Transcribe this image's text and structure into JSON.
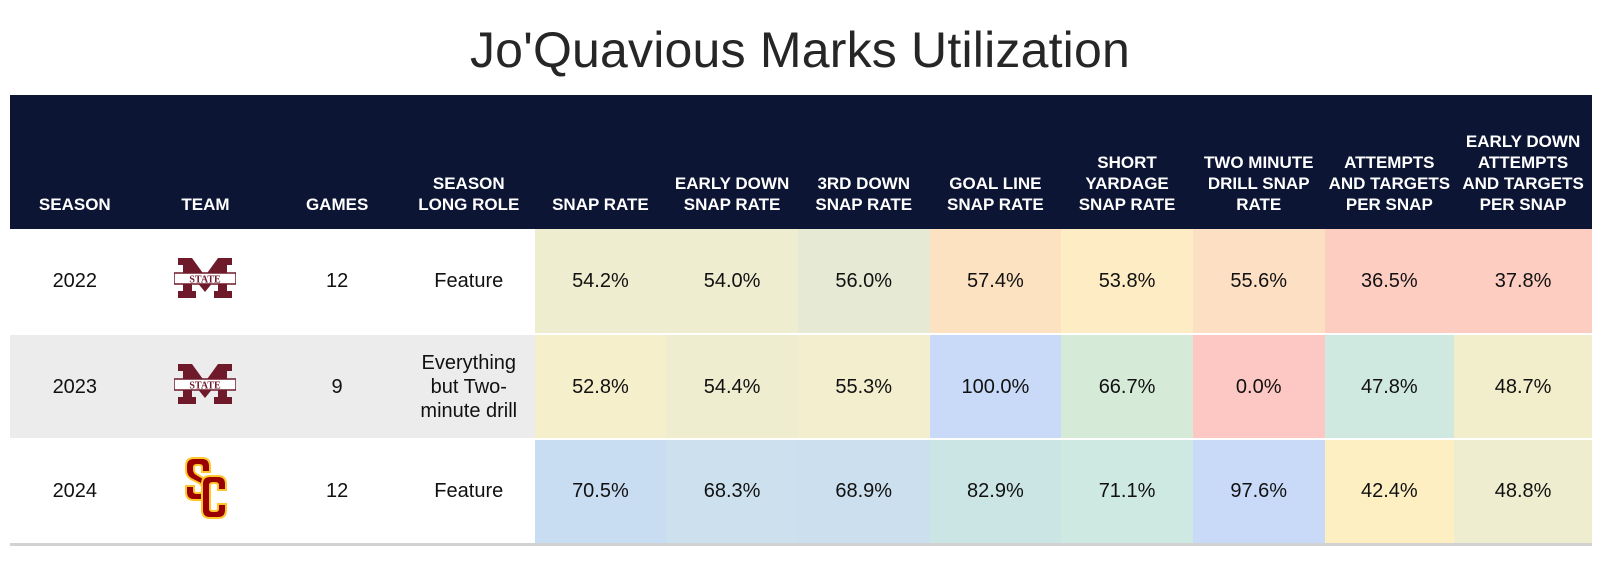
{
  "title": "Jo'Quavious Marks Utilization",
  "chart_data": {
    "type": "table",
    "title": "Jo'Quavious Marks Utilization",
    "columns": [
      "SEASON",
      "TEAM",
      "GAMES",
      "SEASON LONG ROLE",
      "SNAP RATE",
      "EARLY DOWN SNAP RATE",
      "3RD DOWN SNAP RATE",
      "GOAL LINE SNAP RATE",
      "SHORT YARDAGE SNAP RATE",
      "TWO MINUTE DRILL SNAP RATE",
      "ATTEMPTS AND TARGETS PER SNAP",
      "EARLY DOWN ATTEMPTS AND TARGETS PER SNAP"
    ],
    "rows": [
      {
        "season": "2022",
        "team_logo": "mississippi-state-logo",
        "games": "12",
        "role": "Feature",
        "metrics": [
          {
            "text": "54.2%",
            "color": "#eeedcf"
          },
          {
            "text": "54.0%",
            "color": "#eeedcf"
          },
          {
            "text": "56.0%",
            "color": "#e6ead5"
          },
          {
            "text": "57.4%",
            "color": "#fde2c2"
          },
          {
            "text": "53.8%",
            "color": "#fdecc4"
          },
          {
            "text": "55.6%",
            "color": "#fde0c4"
          },
          {
            "text": "36.5%",
            "color": "#fdcdc2"
          },
          {
            "text": "37.8%",
            "color": "#fdcdc2"
          }
        ]
      },
      {
        "season": "2023",
        "team_logo": "mississippi-state-logo",
        "games": "9",
        "role": "Everything but Two-minute drill",
        "metrics": [
          {
            "text": "52.8%",
            "color": "#f6efcb"
          },
          {
            "text": "54.4%",
            "color": "#eeedcf"
          },
          {
            "text": "55.3%",
            "color": "#f2eece"
          },
          {
            "text": "100.0%",
            "color": "#c8daf8"
          },
          {
            "text": "66.7%",
            "color": "#d5ebd8"
          },
          {
            "text": "0.0%",
            "color": "#fdc8c3"
          },
          {
            "text": "47.8%",
            "color": "#cfe8e0"
          },
          {
            "text": "48.7%",
            "color": "#f2eecb"
          }
        ]
      },
      {
        "season": "2024",
        "team_logo": "usc-logo",
        "games": "12",
        "role": "Feature",
        "metrics": [
          {
            "text": "70.5%",
            "color": "#c8dcf2"
          },
          {
            "text": "68.3%",
            "color": "#cde0ee"
          },
          {
            "text": "68.9%",
            "color": "#cbdfee"
          },
          {
            "text": "82.9%",
            "color": "#cbe5e5"
          },
          {
            "text": "71.1%",
            "color": "#cde9e1"
          },
          {
            "text": "97.6%",
            "color": "#c8daf8"
          },
          {
            "text": "42.4%",
            "color": "#fdefc2"
          },
          {
            "text": "48.8%",
            "color": "#eeedcf"
          }
        ]
      }
    ]
  },
  "colors": {
    "header_bg": "#0c1534",
    "header_text": "#ffffff",
    "stripe": "#ececec",
    "msstate_maroon": "#6f1a2b",
    "usc_cardinal": "#990000",
    "usc_gold": "#ffc72c"
  }
}
